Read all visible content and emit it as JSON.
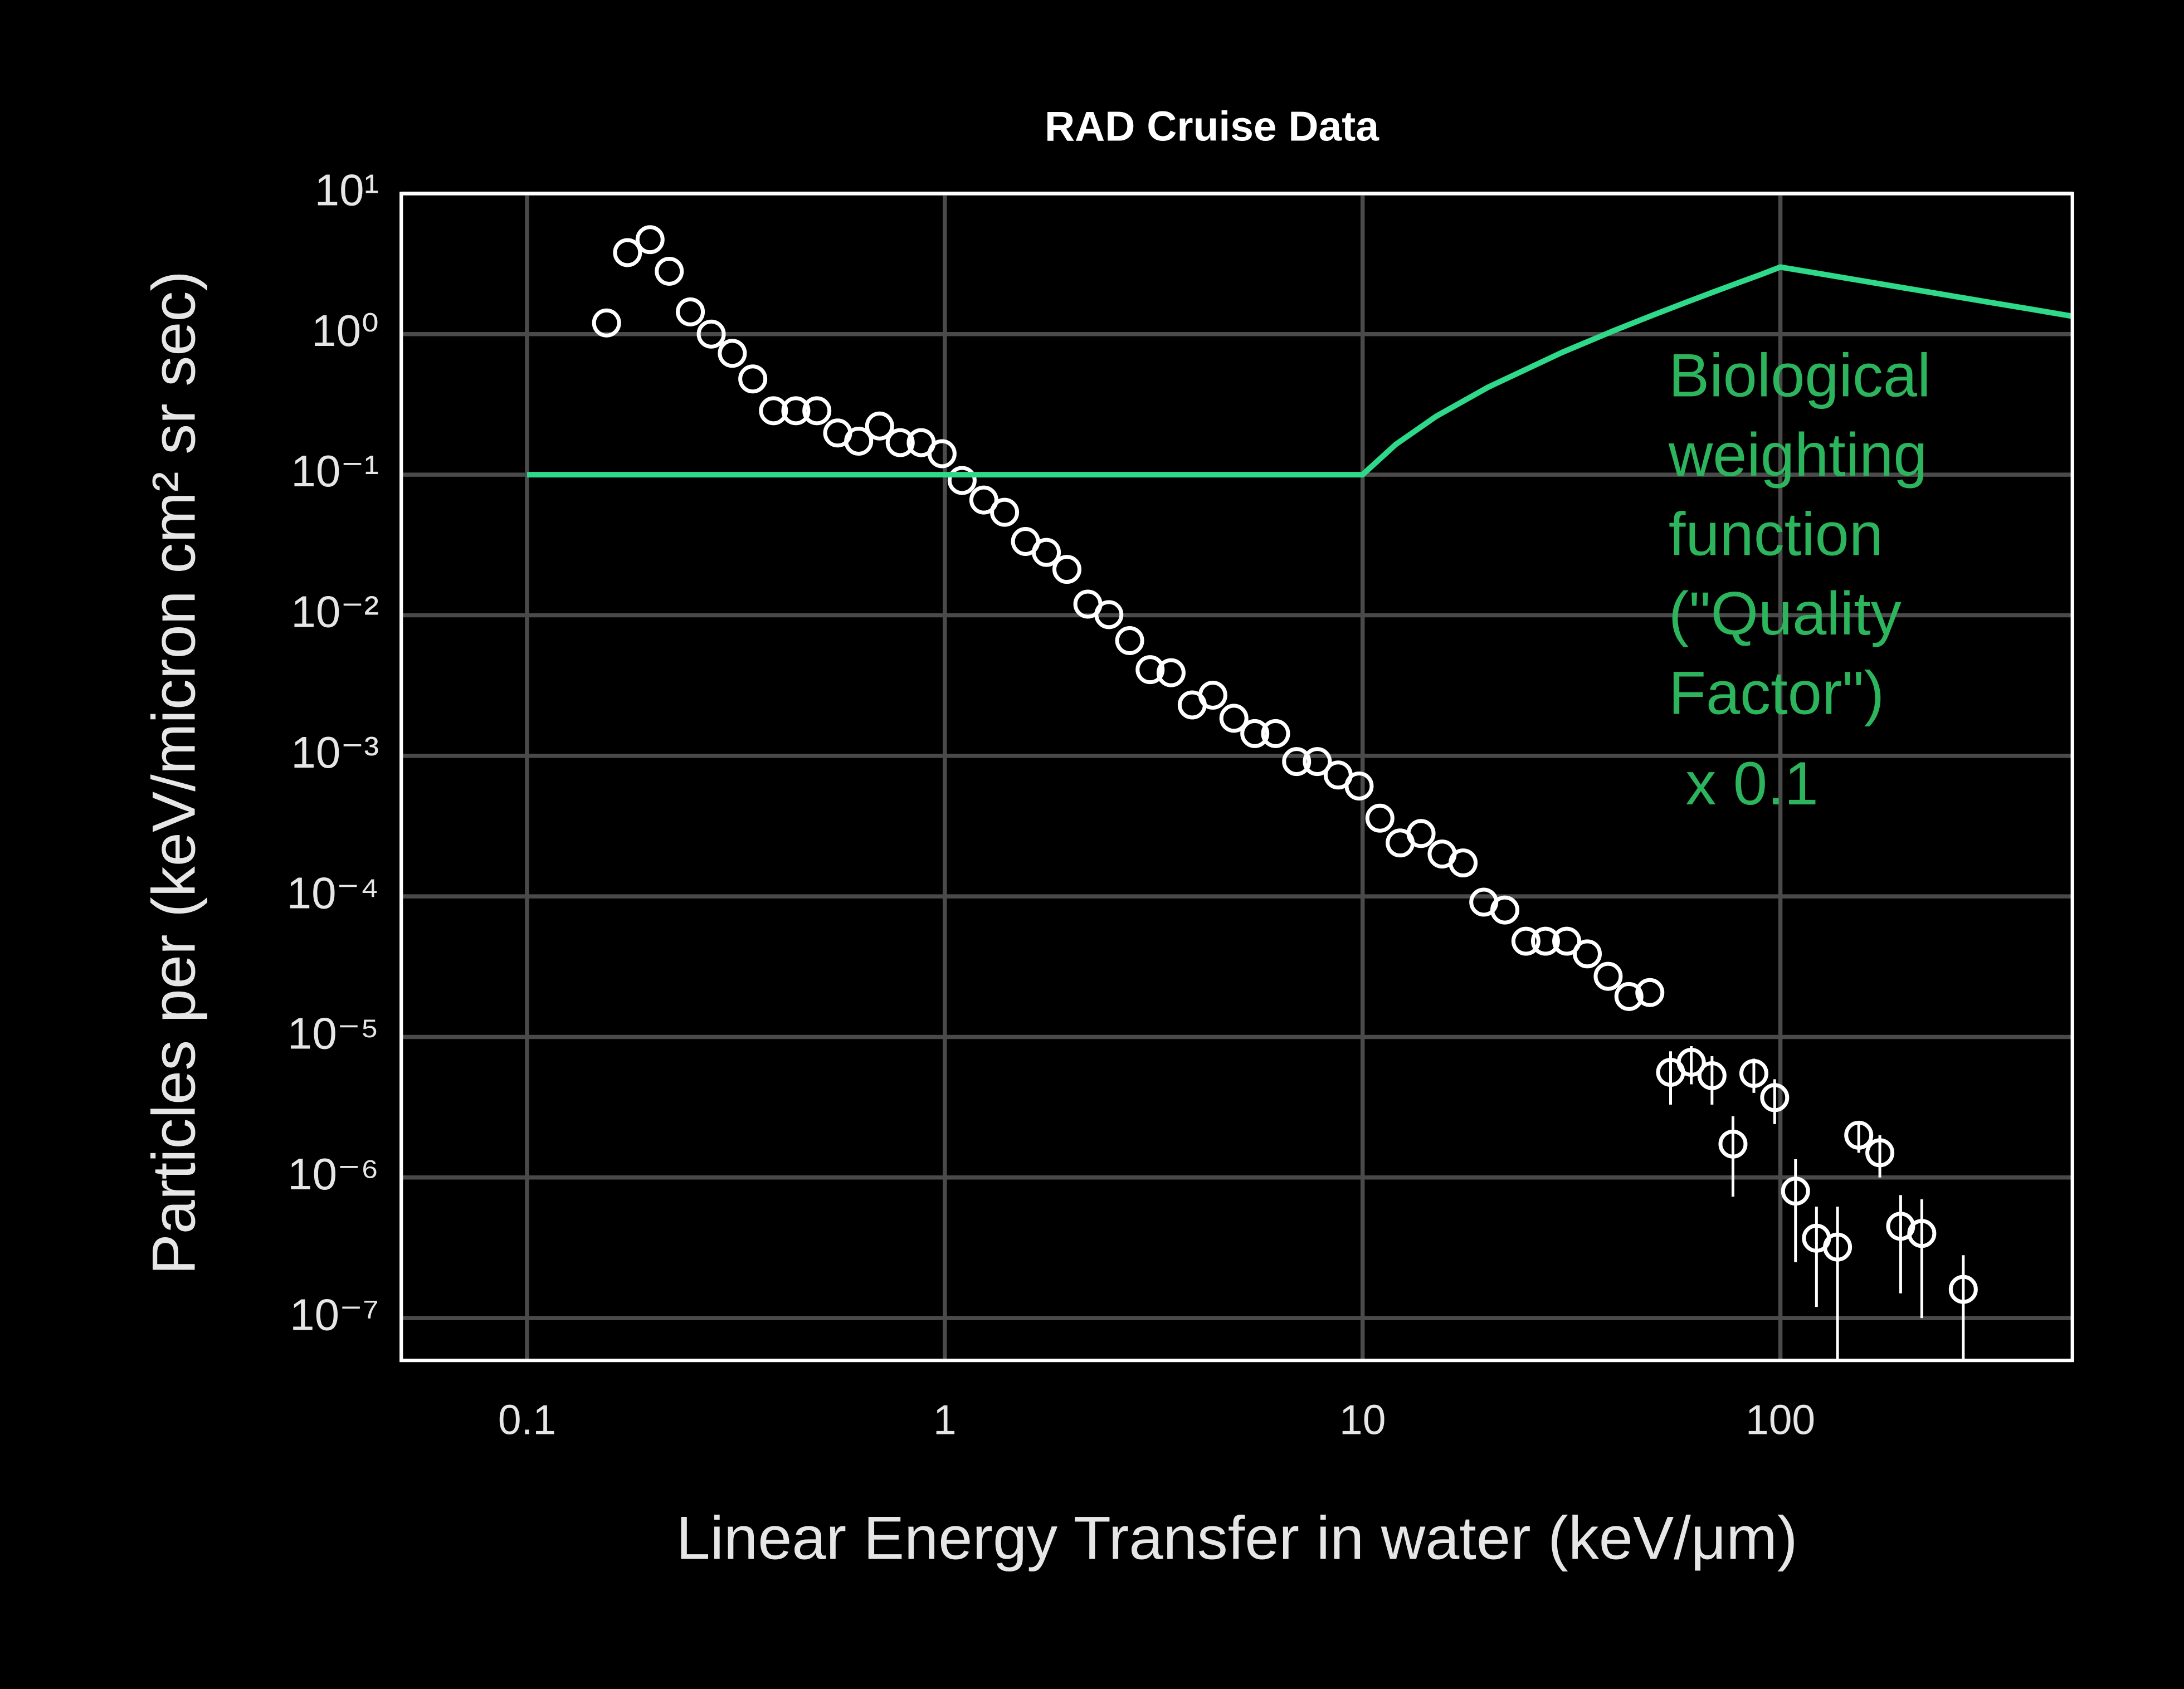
{
  "chart_data": {
    "type": "scatter",
    "title": "RAD Cruise Data",
    "x_label": "Linear Energy Transfer in water (keV/μm)",
    "y_label": "Particles per (keV/micron cm² sr sec)",
    "log_x": true,
    "log_y": true,
    "grid": true,
    "xlim": [
      0.05,
      500
    ],
    "ylim": [
      5e-08,
      10
    ],
    "xticks": [
      0.1,
      1,
      10,
      100
    ],
    "yticks": [
      {
        "value": 10,
        "label": "10¹"
      },
      {
        "value": 1,
        "label": "10⁰"
      },
      {
        "value": 0.1,
        "label": "10⁻¹"
      },
      {
        "value": 0.01,
        "label": "10⁻²"
      },
      {
        "value": 0.001,
        "label": "10⁻³"
      },
      {
        "value": 0.0001,
        "label": "10⁻⁴"
      },
      {
        "value": 1e-05,
        "label": "10⁻⁵"
      },
      {
        "value": 1e-06,
        "label": "10⁻⁶"
      },
      {
        "value": 1e-07,
        "label": "10⁻⁷"
      }
    ],
    "annotation": [
      "Biological",
      "weighting",
      "function",
      "(\"Quality",
      "Factor\")",
      " x 0.1"
    ],
    "annotation_color": "#2db55d",
    "series": [
      {
        "type": "scatter",
        "color": "#ffffff",
        "x": [
          0.155,
          0.174,
          0.197,
          0.219,
          0.246,
          0.276,
          0.31,
          0.347,
          0.389,
          0.44,
          0.494,
          0.554,
          0.622,
          0.698,
          0.782,
          0.878,
          0.985,
          1.1,
          1.24,
          1.39,
          1.56,
          1.75,
          1.96,
          2.2,
          2.47,
          2.77,
          3.1,
          3.48,
          3.91,
          4.38,
          4.92,
          5.52,
          6.19,
          6.95,
          7.79,
          8.74,
          9.81,
          11,
          12.3,
          13.8,
          15.5,
          17.4,
          19.5,
          21.9,
          24.6,
          27.4,
          30.8,
          34.5,
          38.7,
          43.4,
          48.7,
          54.6,
          61.2,
          68.6,
          77,
          86.4,
          96.9,
          108.7,
          122,
          137,
          154,
          173,
          194,
          218,
          274
        ],
        "values": [
          1.2,
          3.8,
          4.7,
          2.8,
          1.44,
          1.0,
          0.73,
          0.48,
          0.285,
          0.285,
          0.285,
          0.198,
          0.173,
          0.222,
          0.169,
          0.169,
          0.141,
          0.091,
          0.066,
          0.054,
          0.0335,
          0.028,
          0.0212,
          0.012,
          0.0101,
          0.0066,
          0.0041,
          0.0039,
          0.0023,
          0.0027,
          0.00185,
          0.00144,
          0.00144,
          0.00091,
          0.00091,
          0.00073,
          0.00061,
          0.00036,
          0.00024,
          0.00028,
          0.0002,
          0.000173,
          9.1e-05,
          8e-05,
          4.8e-05,
          4.8e-05,
          4.8e-05,
          3.9e-05,
          2.7e-05,
          1.94e-05,
          2.07e-05,
          5.6e-06,
          6.6e-06,
          5.3e-06,
          1.73e-06,
          5.5e-06,
          3.7e-06,
          8e-07,
          3.7e-07,
          3.2e-07,
          2e-06,
          1.5e-06,
          4.5e-07,
          4e-07,
          1.6e-07
        ],
        "errors": [
          null,
          null,
          null,
          null,
          null,
          null,
          null,
          null,
          null,
          null,
          null,
          null,
          null,
          null,
          null,
          null,
          null,
          null,
          null,
          null,
          null,
          null,
          null,
          null,
          null,
          null,
          null,
          null,
          null,
          null,
          null,
          null,
          null,
          null,
          null,
          null,
          null,
          null,
          null,
          null,
          null,
          null,
          null,
          null,
          null,
          null,
          null,
          null,
          null,
          null,
          null,
          2.3e-06,
          2e-06,
          2e-06,
          1e-06,
          1.5e-06,
          1.3e-06,
          5.5e-07,
          2.5e-07,
          3e-07,
          5e-07,
          5e-07,
          3e-07,
          3e-07,
          1.2e-07
        ]
      },
      {
        "type": "line",
        "color": "#2ed98a",
        "x": [
          0.1,
          10,
          12,
          15,
          20,
          30,
          40,
          50,
          60,
          70,
          80,
          90,
          100,
          200,
          300,
          400,
          500
        ],
        "values": [
          0.1,
          0.1,
          0.164,
          0.26,
          0.42,
          0.74,
          1.06,
          1.38,
          1.7,
          2.02,
          2.34,
          2.66,
          3.0,
          2.12,
          1.73,
          1.5,
          1.34
        ]
      }
    ]
  }
}
